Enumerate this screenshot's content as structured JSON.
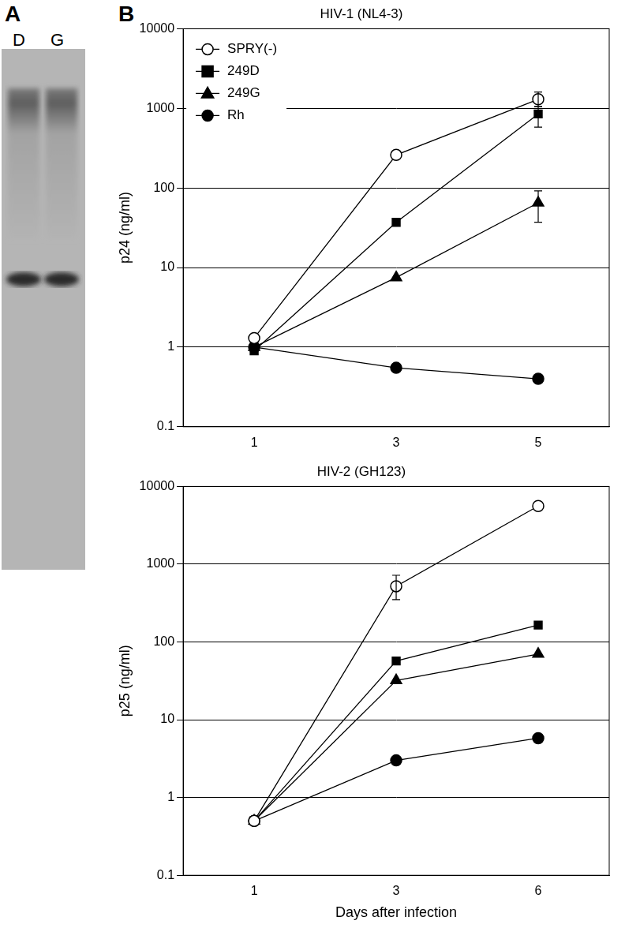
{
  "panel_labels": [
    "A",
    "B"
  ],
  "blot": {
    "lanes": [
      "D",
      "G"
    ]
  },
  "chart_data": [
    {
      "type": "line",
      "title": "HIV-1 (NL4-3)",
      "y_label": "p24 (ng/ml)",
      "categories": [
        "1",
        "3",
        "5"
      ],
      "log": "y",
      "ylim": [
        0.1,
        10000
      ],
      "yticks": [
        0.1,
        1,
        10,
        100,
        1000,
        10000
      ],
      "grid": true,
      "legend": "upper left",
      "series": [
        {
          "name": "SPRY(-)",
          "color": "#000000",
          "marker": "circle-open",
          "values": [
            1.3,
            260,
            1300
          ],
          "errors": [
            null,
            null,
            [
              1050,
              1600
            ]
          ]
        },
        {
          "name": "249D",
          "color": "#000000",
          "marker": "square",
          "values": [
            0.9,
            37,
            850
          ],
          "errors": [
            null,
            null,
            [
              580,
              1050
            ]
          ]
        },
        {
          "name": "249G",
          "color": "#000000",
          "marker": "triangle",
          "values": [
            1.0,
            7.5,
            65
          ],
          "errors": [
            null,
            null,
            [
              37,
              92
            ]
          ]
        },
        {
          "name": "Rh",
          "color": "#000000",
          "marker": "circle",
          "values": [
            1.0,
            0.55,
            0.4
          ],
          "errors": [
            null,
            null,
            null
          ]
        }
      ]
    },
    {
      "type": "line",
      "title": "HIV-2 (GH123)",
      "y_label": "p25 (ng/ml)",
      "x_label": "Days after infection",
      "categories": [
        "1",
        "3",
        "6"
      ],
      "log": "y",
      "ylim": [
        0.1,
        10000
      ],
      "yticks": [
        0.1,
        1,
        10,
        100,
        1000,
        10000
      ],
      "grid": true,
      "series": [
        {
          "name": "SPRY(-)",
          "color": "#000000",
          "marker": "circle-open",
          "values": [
            0.5,
            520,
            5600
          ],
          "errors": [
            null,
            [
              350,
              720
            ],
            null
          ]
        },
        {
          "name": "249D",
          "color": "#000000",
          "marker": "square",
          "values": [
            0.5,
            57,
            165
          ],
          "errors": [
            null,
            null,
            null
          ]
        },
        {
          "name": "249G",
          "color": "#000000",
          "marker": "triangle",
          "values": [
            0.5,
            32,
            70
          ],
          "errors": [
            null,
            null,
            null
          ]
        },
        {
          "name": "Rh",
          "color": "#000000",
          "marker": "circle",
          "values": [
            0.5,
            3.0,
            5.8
          ],
          "errors": [
            null,
            null,
            null
          ]
        }
      ]
    }
  ]
}
